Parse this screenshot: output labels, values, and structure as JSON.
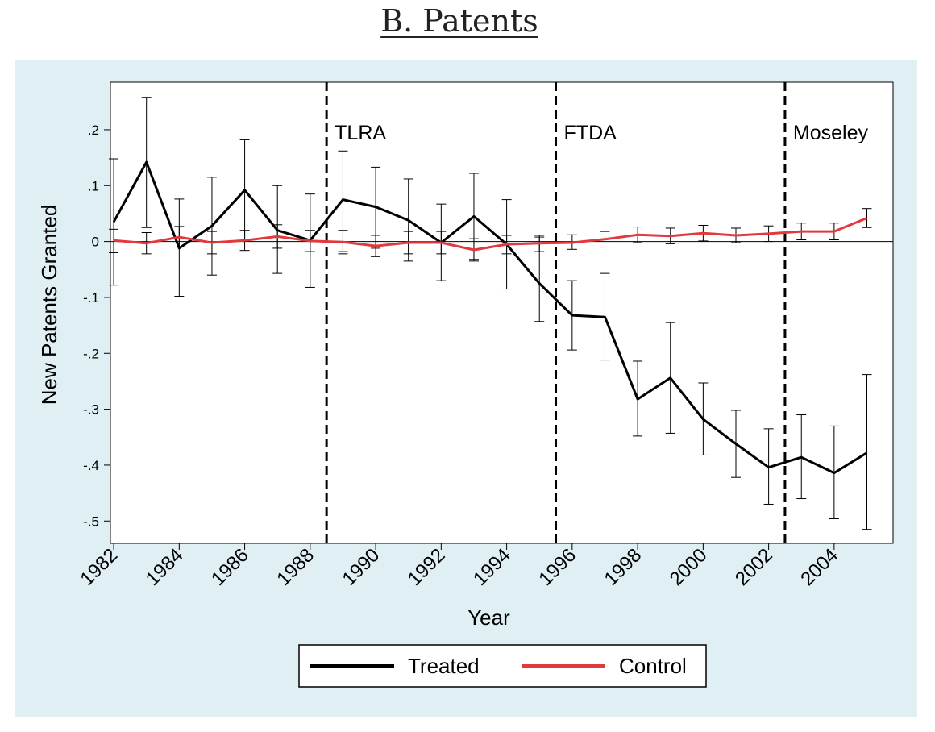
{
  "title": "B. Patents",
  "chart_data": {
    "type": "line",
    "title": "B. Patents",
    "xlabel": "Year",
    "ylabel": "New Patents Granted",
    "x": [
      1982,
      1983,
      1984,
      1985,
      1986,
      1987,
      1988,
      1989,
      1990,
      1991,
      1992,
      1993,
      1994,
      1995,
      1996,
      1997,
      1998,
      1999,
      2000,
      2001,
      2002,
      2003,
      2004,
      2005
    ],
    "xlim": [
      1981.9,
      2005.8
    ],
    "ylim": [
      -0.54,
      0.285
    ],
    "xticks": [
      1982,
      1984,
      1986,
      1988,
      1990,
      1992,
      1994,
      1996,
      1998,
      2000,
      2002,
      2004
    ],
    "yticks": [
      0.2,
      0.1,
      0,
      -0.1,
      -0.2,
      -0.3,
      -0.4,
      -0.5
    ],
    "ytick_labels": [
      ".2",
      ".1",
      "0",
      "-.1",
      "-.2",
      "-.3",
      "-.4",
      "-.5"
    ],
    "background_color": "#dfeff3",
    "plot_background": "#ffffff",
    "series": [
      {
        "name": "Treated",
        "color": "#000000",
        "values": [
          0.035,
          0.142,
          -0.012,
          0.028,
          0.092,
          0.02,
          0.002,
          0.075,
          0.062,
          0.038,
          -0.002,
          0.045,
          -0.005,
          -0.075,
          -0.132,
          -0.135,
          -0.282,
          -0.244,
          -0.318,
          -0.362,
          -0.404,
          -0.386,
          -0.414,
          -0.378
        ],
        "ci_low": [
          -0.078,
          0.025,
          -0.098,
          -0.06,
          0.002,
          -0.057,
          -0.082,
          -0.018,
          -0.012,
          -0.035,
          -0.07,
          -0.032,
          -0.085,
          -0.143,
          -0.194,
          -0.212,
          -0.348,
          -0.343,
          -0.382,
          -0.422,
          -0.47,
          -0.46,
          -0.496,
          -0.515
        ],
        "ci_high": [
          0.148,
          0.258,
          0.076,
          0.115,
          0.182,
          0.1,
          0.085,
          0.162,
          0.133,
          0.112,
          0.067,
          0.122,
          0.075,
          0.008,
          -0.07,
          -0.057,
          -0.214,
          -0.145,
          -0.253,
          -0.302,
          -0.335,
          -0.31,
          -0.33,
          -0.238
        ]
      },
      {
        "name": "Control",
        "color": "#e03a3e",
        "values": [
          0.002,
          -0.003,
          0.008,
          -0.002,
          0.002,
          0.009,
          0.001,
          -0.001,
          -0.008,
          -0.002,
          -0.002,
          -0.015,
          -0.005,
          -0.003,
          -0.002,
          0.004,
          0.012,
          0.01,
          0.015,
          0.011,
          0.014,
          0.018,
          0.018,
          0.042
        ],
        "ci_low": [
          -0.02,
          -0.022,
          -0.01,
          -0.022,
          -0.016,
          -0.012,
          -0.018,
          -0.022,
          -0.027,
          -0.022,
          -0.022,
          -0.035,
          -0.022,
          -0.018,
          -0.014,
          -0.01,
          -0.002,
          -0.004,
          0.001,
          -0.002,
          0.0,
          0.003,
          0.003,
          0.025
        ],
        "ci_high": [
          0.022,
          0.016,
          0.027,
          0.018,
          0.02,
          0.03,
          0.02,
          0.02,
          0.011,
          0.018,
          0.018,
          0.005,
          0.011,
          0.011,
          0.012,
          0.018,
          0.026,
          0.024,
          0.029,
          0.024,
          0.028,
          0.033,
          0.033,
          0.059
        ]
      }
    ],
    "vlines": [
      {
        "x": 1988.5,
        "label": "TLRA"
      },
      {
        "x": 1995.5,
        "label": "FTDA"
      },
      {
        "x": 2002.5,
        "label": "Moseley"
      }
    ],
    "hline_y": 0,
    "grid": false,
    "legend": {
      "placement": "bottom-center",
      "entries": [
        "Treated",
        "Control"
      ]
    }
  }
}
